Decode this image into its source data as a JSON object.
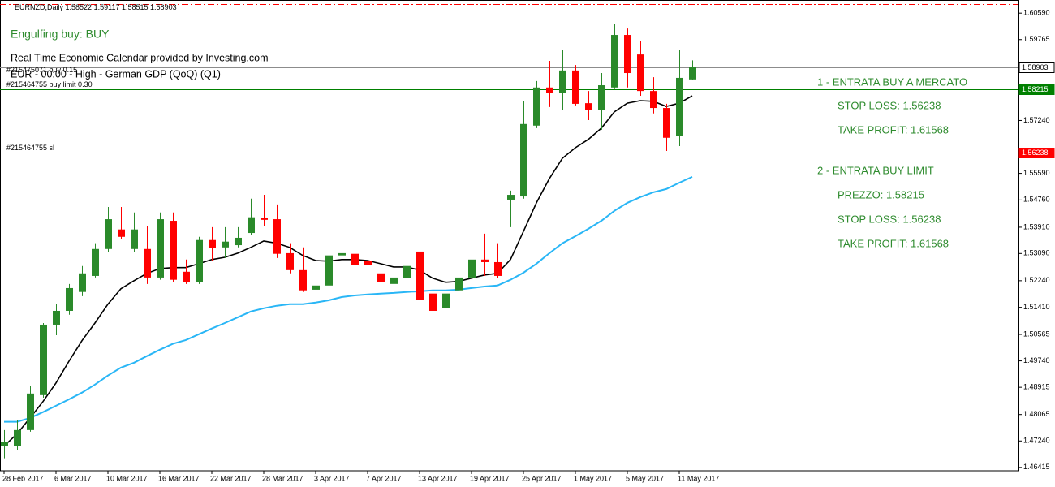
{
  "chart_data": {
    "type": "candlestick",
    "symbol": "EURNZD,Daily",
    "categories": [
      "28 Feb 2017",
      null,
      null,
      null,
      "6 Mar 2017",
      null,
      null,
      null,
      "10 Mar 2017",
      null,
      null,
      null,
      "16 Mar 2017",
      null,
      null,
      null,
      "22 Mar 2017",
      null,
      null,
      null,
      "28 Mar 2017",
      null,
      null,
      null,
      "3 Apr 2017",
      null,
      null,
      null,
      "7 Apr 2017",
      null,
      null,
      null,
      "13 Apr 2017",
      null,
      null,
      null,
      "19 Apr 2017",
      null,
      null,
      null,
      "25 Apr 2017",
      null,
      null,
      null,
      "1 May 2017",
      null,
      null,
      null,
      "5 May 2017",
      null,
      null,
      null,
      "11 May 2017",
      null
    ],
    "open": [
      1.4708,
      1.4708,
      1.4758,
      1.4867,
      1.5087,
      1.513,
      1.5189,
      1.5239,
      1.5323,
      1.5384,
      1.5323,
      1.5323,
      1.5234,
      1.5411,
      1.5252,
      1.5219,
      1.5351,
      1.5328,
      1.5335,
      1.5373,
      1.5419,
      1.5416,
      1.531,
      1.5257,
      1.5196,
      1.5209,
      1.5303,
      1.5308,
      1.5285,
      1.5247,
      1.5214,
      1.5232,
      1.5315,
      1.5184,
      1.5138,
      1.5194,
      1.5234,
      1.529,
      1.5282,
      1.5477,
      1.5487,
      1.5708,
      1.5827,
      1.5809,
      1.588,
      1.5778,
      1.5758,
      1.5827,
      1.5991,
      1.593,
      1.5816,
      1.5763,
      1.5675,
      1.58522
    ],
    "high": [
      1.4758,
      1.4789,
      1.4897,
      1.5092,
      1.5151,
      1.5214,
      1.527,
      1.5341,
      1.5454,
      1.5454,
      1.5437,
      1.5396,
      1.5437,
      1.5437,
      1.529,
      1.5361,
      1.5391,
      1.5391,
      1.5391,
      1.548,
      1.5492,
      1.5462,
      1.5341,
      1.5328,
      1.5285,
      1.532,
      1.5341,
      1.5346,
      1.5328,
      1.5265,
      1.5303,
      1.5358,
      1.532,
      1.5227,
      1.5194,
      1.5277,
      1.5328,
      1.5371,
      1.5341,
      1.5505,
      1.5784,
      1.5847,
      1.591,
      1.5943,
      1.5897,
      1.5816,
      1.5872,
      1.6024,
      1.6011,
      1.5973,
      1.5859,
      1.5776,
      1.5943,
      1.59117
    ],
    "low": [
      1.467,
      1.4695,
      1.4753,
      1.4859,
      1.5054,
      1.5118,
      1.5176,
      1.5234,
      1.5315,
      1.5353,
      1.5315,
      1.5214,
      1.5227,
      1.5219,
      1.5214,
      1.5214,
      1.5285,
      1.5295,
      1.5328,
      1.5366,
      1.5396,
      1.5295,
      1.5247,
      1.5189,
      1.5194,
      1.5194,
      1.529,
      1.527,
      1.5265,
      1.5209,
      1.5204,
      1.5219,
      1.5158,
      1.5123,
      1.51,
      1.5176,
      1.5227,
      1.5239,
      1.5232,
      1.5391,
      1.548,
      1.57,
      1.5766,
      1.5758,
      1.5771,
      1.5725,
      1.5695,
      1.5822,
      1.5827,
      1.5801,
      1.5746,
      1.5629,
      1.5644,
      1.58515
    ],
    "close": [
      1.472,
      1.4758,
      1.4872,
      1.5087,
      1.513,
      1.5201,
      1.5247,
      1.5323,
      1.5416,
      1.5361,
      1.5384,
      1.5234,
      1.5416,
      1.5227,
      1.5219,
      1.5351,
      1.5325,
      1.5346,
      1.5358,
      1.5422,
      1.5414,
      1.5308,
      1.5257,
      1.5194,
      1.5209,
      1.5303,
      1.531,
      1.5272,
      1.5272,
      1.5219,
      1.5234,
      1.527,
      1.5163,
      1.513,
      1.5184,
      1.5234,
      1.529,
      1.5282,
      1.5239,
      1.5492,
      1.5713,
      1.5827,
      1.5809,
      1.588,
      1.5776,
      1.5758,
      1.5834,
      1.5991,
      1.5872,
      1.5816,
      1.5763,
      1.567,
      1.5857,
      1.58903
    ],
    "up_color": "#2a8a2a",
    "down_color": "#ff0000",
    "ma": [
      {
        "color": "#000000",
        "values": [
          1.4708,
          1.4746,
          1.4796,
          1.4847,
          1.4905,
          1.4973,
          1.5037,
          1.5092,
          1.5151,
          1.5199,
          1.5224,
          1.5247,
          1.5262,
          1.5265,
          1.5265,
          1.5277,
          1.529,
          1.5297,
          1.531,
          1.5328,
          1.5348,
          1.5341,
          1.5328,
          1.5303,
          1.5287,
          1.5285,
          1.529,
          1.529,
          1.5287,
          1.5277,
          1.5267,
          1.5267,
          1.5257,
          1.5232,
          1.5219,
          1.5222,
          1.5232,
          1.5242,
          1.5247,
          1.529,
          1.5378,
          1.5467,
          1.5543,
          1.5606,
          1.5639,
          1.5665,
          1.57,
          1.5751,
          1.5778,
          1.5786,
          1.5784,
          1.5768,
          1.5778,
          1.5801
        ]
      },
      {
        "color": "#29b6f6",
        "values": [
          1.4784,
          1.4784,
          1.4796,
          1.4814,
          1.4834,
          1.4854,
          1.4875,
          1.49,
          1.4928,
          1.4953,
          1.4968,
          1.4989,
          1.5009,
          1.5027,
          1.5039,
          1.5057,
          1.5075,
          1.5092,
          1.511,
          1.5128,
          1.5138,
          1.5146,
          1.5151,
          1.5151,
          1.5156,
          1.5163,
          1.5173,
          1.5178,
          1.5181,
          1.5184,
          1.5186,
          1.5189,
          1.5191,
          1.5194,
          1.5194,
          1.5196,
          1.5201,
          1.5206,
          1.5209,
          1.5227,
          1.5249,
          1.5277,
          1.531,
          1.5341,
          1.5363,
          1.5386,
          1.5411,
          1.5442,
          1.5467,
          1.5485,
          1.55,
          1.551,
          1.553,
          1.5548
        ]
      }
    ],
    "levels": [
      {
        "value": 1.6087,
        "color": "#ff0000",
        "style": "dashdot"
      },
      {
        "value": 1.58903,
        "color": "#8c8c8c",
        "style": "solid",
        "price_box": true
      },
      {
        "value": 1.5866,
        "color": "#ff0000",
        "style": "dashdot",
        "label": "#215475071 buy 0.15"
      },
      {
        "value": 1.58215,
        "color": "#008000",
        "style": "solid",
        "label": "#215464755 buy limit 0.30",
        "price_box": true
      },
      {
        "value": 1.56238,
        "color": "#ff0000",
        "style": "solid",
        "label": "#215464755 sl",
        "price_box": true
      }
    ],
    "ylim": [
      1.4631,
      1.61
    ],
    "yticks": [
      {
        "value": 1.6059,
        "label": "1.60590"
      },
      1.59765,
      {
        "value": 1.5724,
        "label": "1.57240"
      },
      {
        "value": 1.5559,
        "label": "1.55590"
      },
      {
        "value": 1.5476,
        "label": "1.54760"
      },
      {
        "value": 1.5391,
        "label": "1.53910"
      },
      {
        "value": 1.5309,
        "label": "1.53090"
      },
      {
        "value": 1.5224,
        "label": "1.52240"
      },
      {
        "value": 1.5141,
        "label": "1.51410"
      },
      1.50565,
      {
        "value": 1.4974,
        "label": "1.49740"
      },
      1.48915,
      1.48065,
      {
        "value": 1.4724,
        "label": "1.47240"
      },
      1.46415
    ],
    "annotations": [
      "Engulfing buy: BUY",
      "Real Time Economic Calendar provided by Investing.com",
      "EUR - 00:00 - High - German GDP (QoQ) (Q1)",
      "1 - ENTRATA BUY A MERCATO",
      "STOP LOSS: 1.56238",
      "TAKE PROFIT: 1.61568",
      "2 - ENTRATA BUY LIMIT",
      "PREZZO: 1.58215",
      "STOP LOSS: 1.56238",
      "TAKE PROFIT: 1.61568"
    ]
  }
}
